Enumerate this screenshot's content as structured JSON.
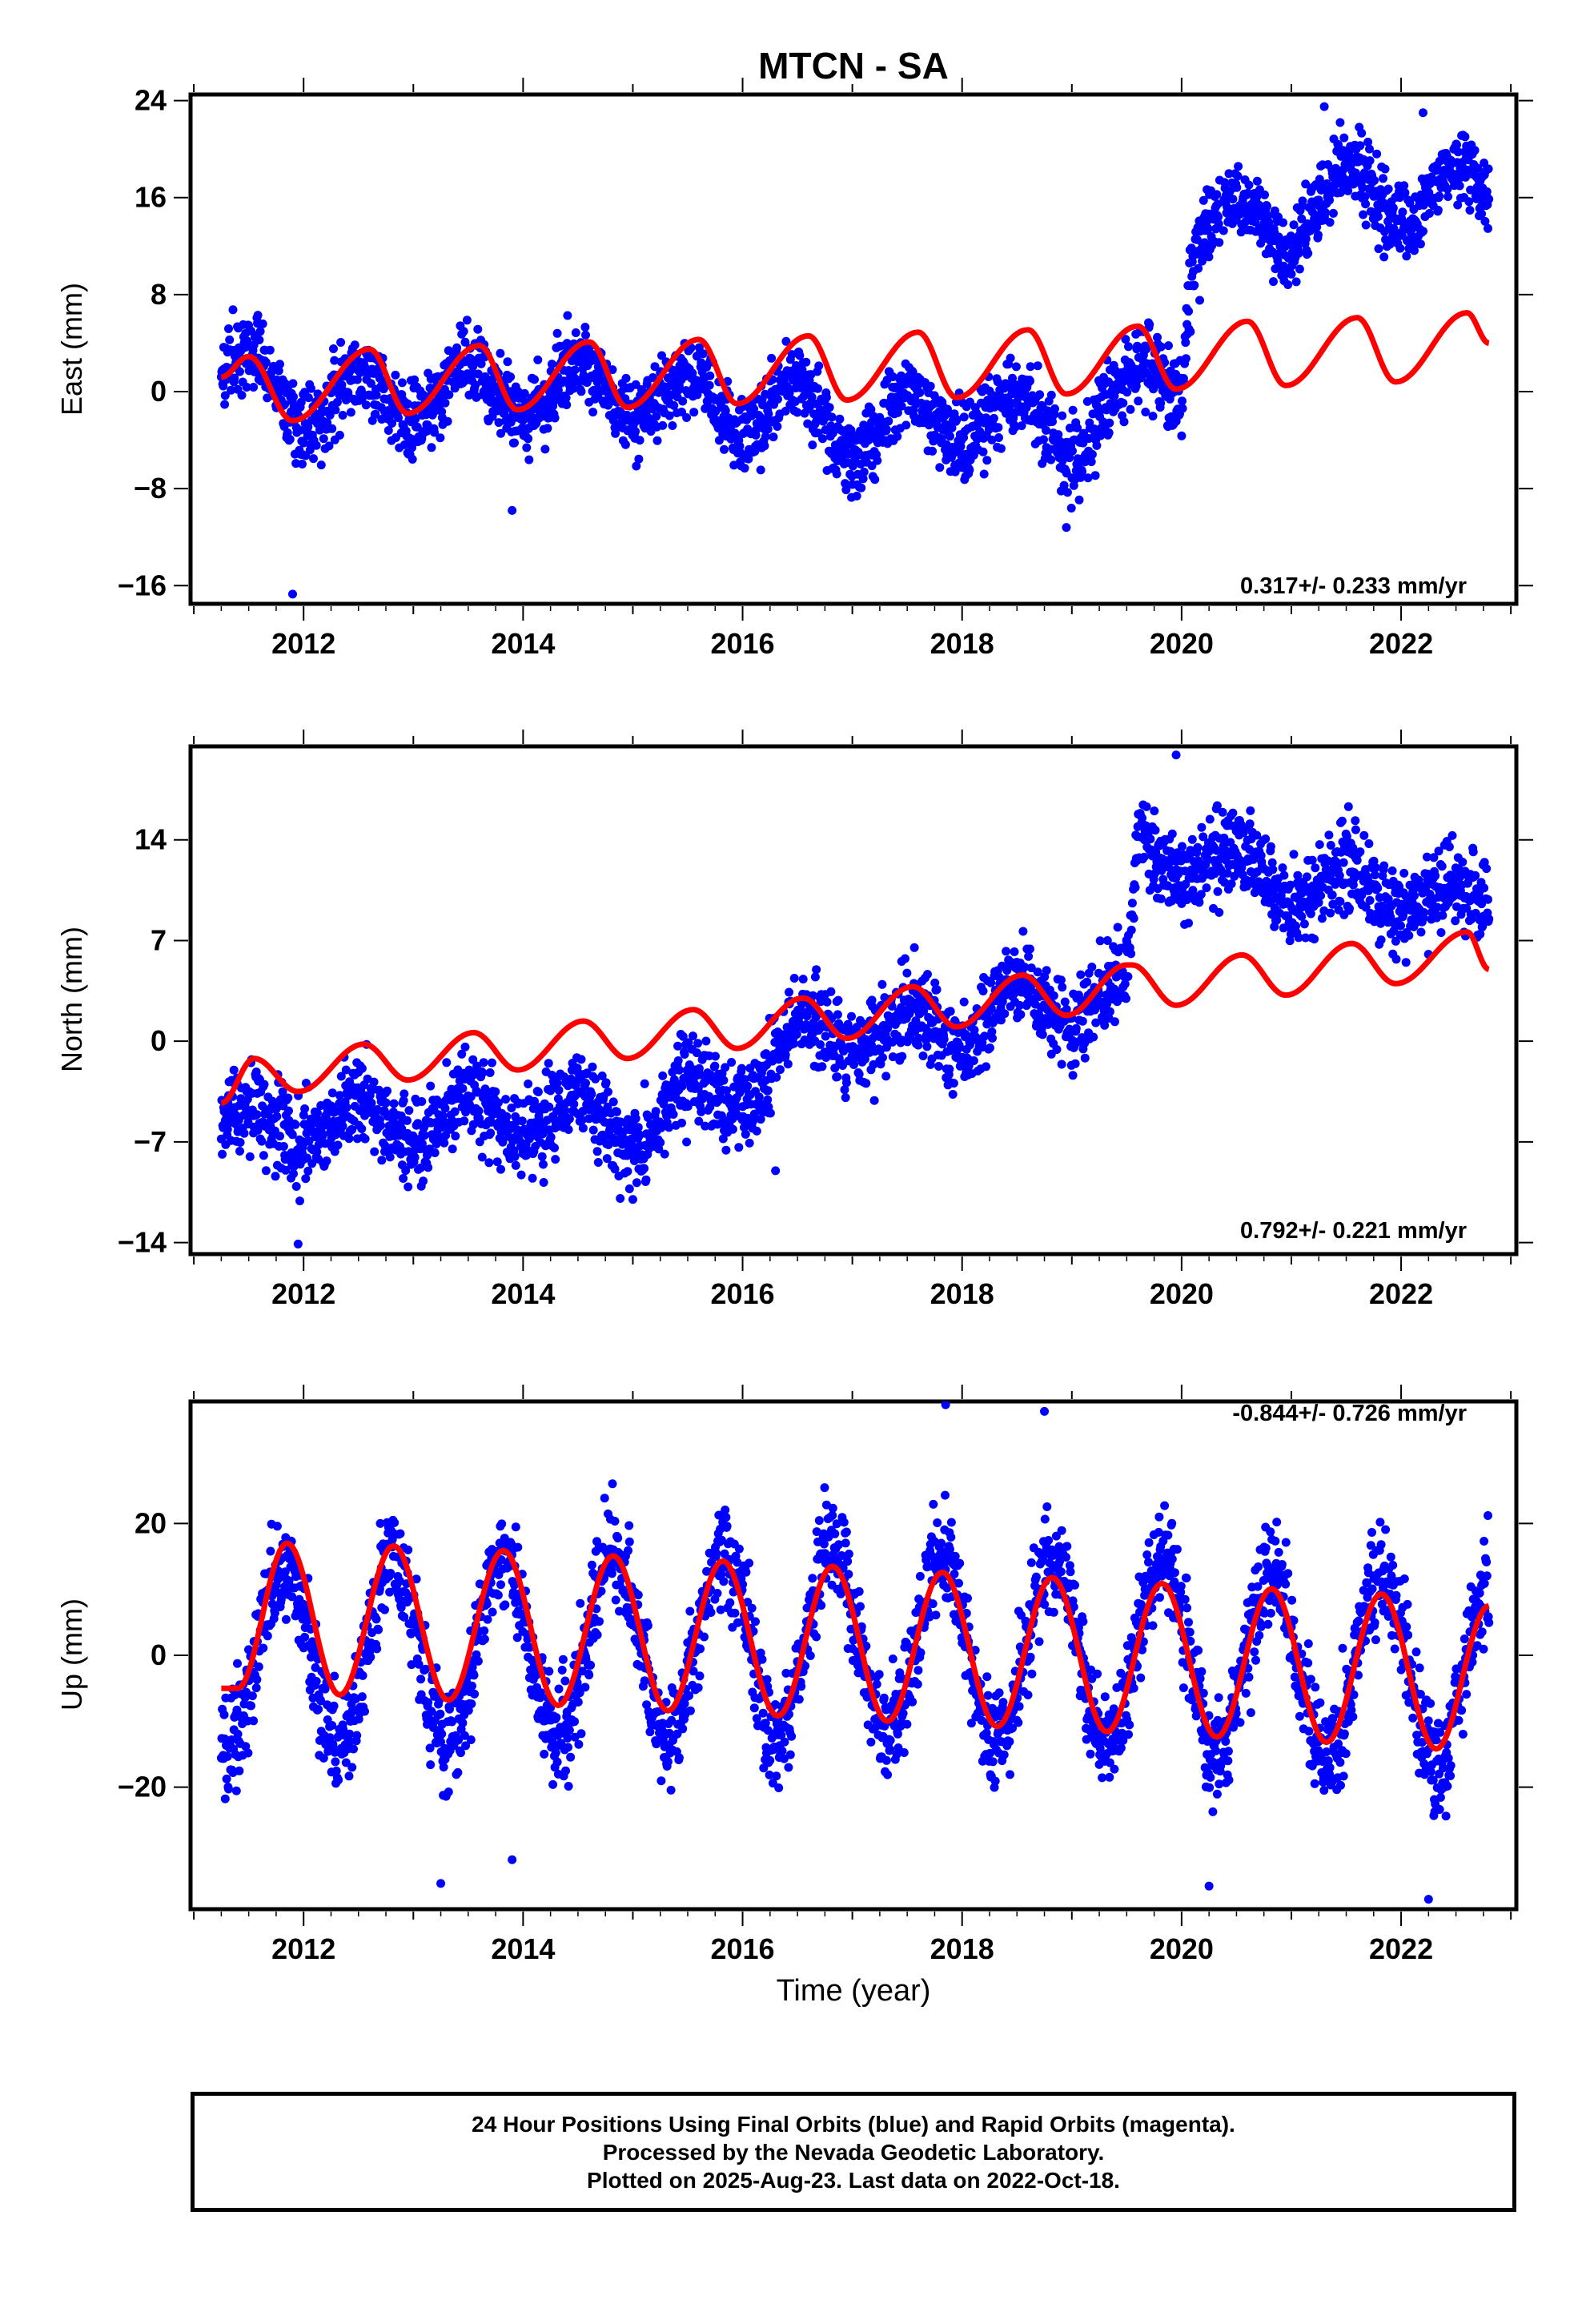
{
  "title": "MTCN - SA",
  "xlabel": "Time (year)",
  "x_ticks": [
    "2012",
    "2014",
    "2016",
    "2018",
    "2020",
    "2022"
  ],
  "colors": {
    "points": "#0000ff",
    "model": "#ff0000",
    "axes": "#000000"
  },
  "footer": {
    "line1": "24 Hour Positions Using Final Orbits (blue) and Rapid Orbits (magenta).",
    "line2": "Processed by the Nevada Geodetic Laboratory.",
    "line3": "Plotted on 2025-Aug-23. Last data on 2022-Oct-18."
  },
  "chart_data": [
    {
      "type": "scatter",
      "id": "east",
      "ylabel": "East (mm)",
      "rate": "0.317+/- 0.233 mm/yr",
      "rate_position": "bottom-right",
      "xlim": [
        2010.97,
        2023.05
      ],
      "ylim": [
        -17.5,
        24.5
      ],
      "y_ticks": [
        {
          "v": -16,
          "label": "−16"
        },
        {
          "v": -8,
          "label": "−8"
        },
        {
          "v": 0,
          "label": "0"
        },
        {
          "v": 8,
          "label": "8"
        },
        {
          "v": 16,
          "label": "16"
        },
        {
          "v": 24,
          "label": "24"
        }
      ],
      "series": [
        {
          "kind": "points",
          "x_range": [
            2011.25,
            2022.8
          ],
          "trend_points": [
            [
              2011.25,
              1.0
            ],
            [
              2011.8,
              0.5
            ],
            [
              2012.2,
              -1.5
            ],
            [
              2013.0,
              0.0
            ],
            [
              2014.0,
              0.0
            ],
            [
              2015.0,
              0.0
            ],
            [
              2015.8,
              -1.0
            ],
            [
              2016.2,
              -1.0
            ],
            [
              2017.0,
              -3.0
            ],
            [
              2018.0,
              -2.0
            ],
            [
              2019.0,
              -3.0
            ],
            [
              2019.5,
              -1.5
            ],
            [
              2019.7,
              2.0
            ],
            [
              2020.0,
              2.0
            ],
            [
              2020.1,
              13.0
            ],
            [
              2020.5,
              14.0
            ],
            [
              2021.0,
              14.0
            ],
            [
              2021.1,
              15.5
            ],
            [
              2022.0,
              16.5
            ],
            [
              2022.8,
              16.0
            ]
          ],
          "seasonal_amplitude": 2.5,
          "noise_sd": 1.6,
          "outliers": [
            [
              2011.9,
              -16.7
            ],
            [
              2013.9,
              -9.8
            ],
            [
              2018.95,
              -11.2
            ],
            [
              2021.3,
              23.5
            ],
            [
              2022.2,
              23.0
            ]
          ],
          "gaps": [
            [
              2020.35,
              2020.38
            ]
          ]
        },
        {
          "kind": "line",
          "points": [
            [
              2011.25,
              1.2
            ],
            [
              2011.5,
              2.9
            ],
            [
              2011.9,
              -2.4
            ],
            [
              2012.6,
              3.5
            ],
            [
              2012.95,
              -1.8
            ],
            [
              2013.6,
              3.8
            ],
            [
              2013.95,
              -1.5
            ],
            [
              2014.6,
              4.1
            ],
            [
              2014.95,
              -1.3
            ],
            [
              2015.6,
              4.3
            ],
            [
              2015.95,
              -1.0
            ],
            [
              2016.6,
              4.6
            ],
            [
              2016.95,
              -0.7
            ],
            [
              2017.6,
              4.9
            ],
            [
              2017.95,
              -0.5
            ],
            [
              2018.6,
              5.1
            ],
            [
              2018.95,
              -0.2
            ],
            [
              2019.6,
              5.4
            ],
            [
              2019.95,
              0.2
            ],
            [
              2020.6,
              5.8
            ],
            [
              2020.95,
              0.5
            ],
            [
              2021.6,
              6.1
            ],
            [
              2021.95,
              0.8
            ],
            [
              2022.6,
              6.5
            ],
            [
              2022.8,
              4.0
            ]
          ]
        }
      ]
    },
    {
      "type": "scatter",
      "id": "north",
      "ylabel": "North (mm)",
      "rate": "0.792+/- 0.221 mm/yr",
      "rate_position": "bottom-right",
      "xlim": [
        2010.97,
        2023.05
      ],
      "ylim": [
        -14.8,
        20.5
      ],
      "y_ticks": [
        {
          "v": -14,
          "label": "−14"
        },
        {
          "v": -7,
          "label": "−7"
        },
        {
          "v": 0,
          "label": "0"
        },
        {
          "v": 7,
          "label": "7"
        },
        {
          "v": 14,
          "label": "14"
        }
      ],
      "series": [
        {
          "kind": "points",
          "x_range": [
            2011.25,
            2022.8
          ],
          "trend_points": [
            [
              2011.25,
              -6.0
            ],
            [
              2012.0,
              -5.5
            ],
            [
              2013.0,
              -5.5
            ],
            [
              2014.0,
              -5.0
            ],
            [
              2015.0,
              -6.0
            ],
            [
              2015.5,
              -4.0
            ],
            [
              2016.2,
              -2.5
            ],
            [
              2016.5,
              0.5
            ],
            [
              2017.0,
              0.5
            ],
            [
              2018.0,
              1.0
            ],
            [
              2018.5,
              2.5
            ],
            [
              2019.0,
              2.5
            ],
            [
              2019.5,
              3.5
            ],
            [
              2019.6,
              13.0
            ],
            [
              2020.0,
              13.0
            ],
            [
              2020.5,
              12.0
            ],
            [
              2021.0,
              11.0
            ],
            [
              2022.0,
              10.5
            ],
            [
              2022.8,
              9.0
            ]
          ],
          "seasonal_amplitude": 1.5,
          "noise_sd": 1.5,
          "outliers": [
            [
              2011.95,
              -14.1
            ],
            [
              2019.95,
              19.9
            ],
            [
              2015.0,
              -11.0
            ],
            [
              2016.3,
              -9.0
            ]
          ],
          "gaps": []
        },
        {
          "kind": "line",
          "points": [
            [
              2011.25,
              -4.3
            ],
            [
              2011.55,
              -1.2
            ],
            [
              2011.95,
              -3.5
            ],
            [
              2012.55,
              -0.2
            ],
            [
              2012.95,
              -2.7
            ],
            [
              2013.55,
              0.6
            ],
            [
              2013.95,
              -2.0
            ],
            [
              2014.55,
              1.4
            ],
            [
              2014.95,
              -1.2
            ],
            [
              2015.55,
              2.2
            ],
            [
              2015.95,
              -0.5
            ],
            [
              2016.55,
              3.0
            ],
            [
              2016.95,
              0.2
            ],
            [
              2017.55,
              3.8
            ],
            [
              2017.95,
              1.0
            ],
            [
              2018.55,
              4.6
            ],
            [
              2018.95,
              1.8
            ],
            [
              2019.5,
              5.3
            ],
            [
              2019.55,
              5.3
            ],
            [
              2019.95,
              2.5
            ],
            [
              2020.55,
              6.0
            ],
            [
              2020.95,
              3.2
            ],
            [
              2021.55,
              6.8
            ],
            [
              2021.95,
              4.0
            ],
            [
              2022.6,
              7.6
            ],
            [
              2022.8,
              5.0
            ]
          ]
        }
      ]
    },
    {
      "type": "scatter",
      "id": "up",
      "ylabel": "Up (mm)",
      "rate": "-0.844+/- 0.726 mm/yr",
      "rate_position": "top-right",
      "xlim": [
        2010.97,
        2023.05
      ],
      "ylim": [
        -38.5,
        38.5
      ],
      "y_ticks": [
        {
          "v": -20,
          "label": "−20"
        },
        {
          "v": 0,
          "label": "0"
        },
        {
          "v": 20,
          "label": "20"
        }
      ],
      "series": [
        {
          "kind": "points",
          "x_range": [
            2011.25,
            2022.8
          ],
          "trend_points": [
            [
              2011.25,
              0.0
            ],
            [
              2016.5,
              2.0
            ],
            [
              2019.5,
              0.0
            ],
            [
              2022.8,
              -3.0
            ]
          ],
          "seasonal_amplitude": 14.0,
          "seasonal_peak": 2011.82,
          "noise_sd": 4.0,
          "outliers": [
            [
              2013.25,
              -34.6
            ],
            [
              2013.9,
              -31.0
            ],
            [
              2017.85,
              38.0
            ],
            [
              2018.75,
              37.0
            ],
            [
              2020.25,
              -35.0
            ],
            [
              2022.25,
              -37.0
            ]
          ],
          "gaps": []
        },
        {
          "kind": "line",
          "points": [
            [
              2011.25,
              -5.0
            ],
            [
              2011.4,
              -5.0
            ],
            [
              2011.85,
              17.0
            ],
            [
              2012.33,
              -6.0
            ],
            [
              2012.82,
              16.6
            ],
            [
              2013.32,
              -6.8
            ],
            [
              2013.82,
              15.9
            ],
            [
              2014.32,
              -7.6
            ],
            [
              2014.82,
              15.1
            ],
            [
              2015.32,
              -8.4
            ],
            [
              2015.82,
              14.3
            ],
            [
              2016.32,
              -9.2
            ],
            [
              2016.82,
              13.5
            ],
            [
              2017.32,
              -10.0
            ],
            [
              2017.82,
              12.6
            ],
            [
              2018.32,
              -10.8
            ],
            [
              2018.82,
              11.8
            ],
            [
              2019.32,
              -11.6
            ],
            [
              2019.82,
              10.9
            ],
            [
              2020.32,
              -12.4
            ],
            [
              2020.82,
              10.1
            ],
            [
              2021.32,
              -13.2
            ],
            [
              2021.82,
              9.3
            ],
            [
              2022.32,
              -14.2
            ],
            [
              2022.8,
              7.5
            ]
          ]
        }
      ]
    }
  ]
}
